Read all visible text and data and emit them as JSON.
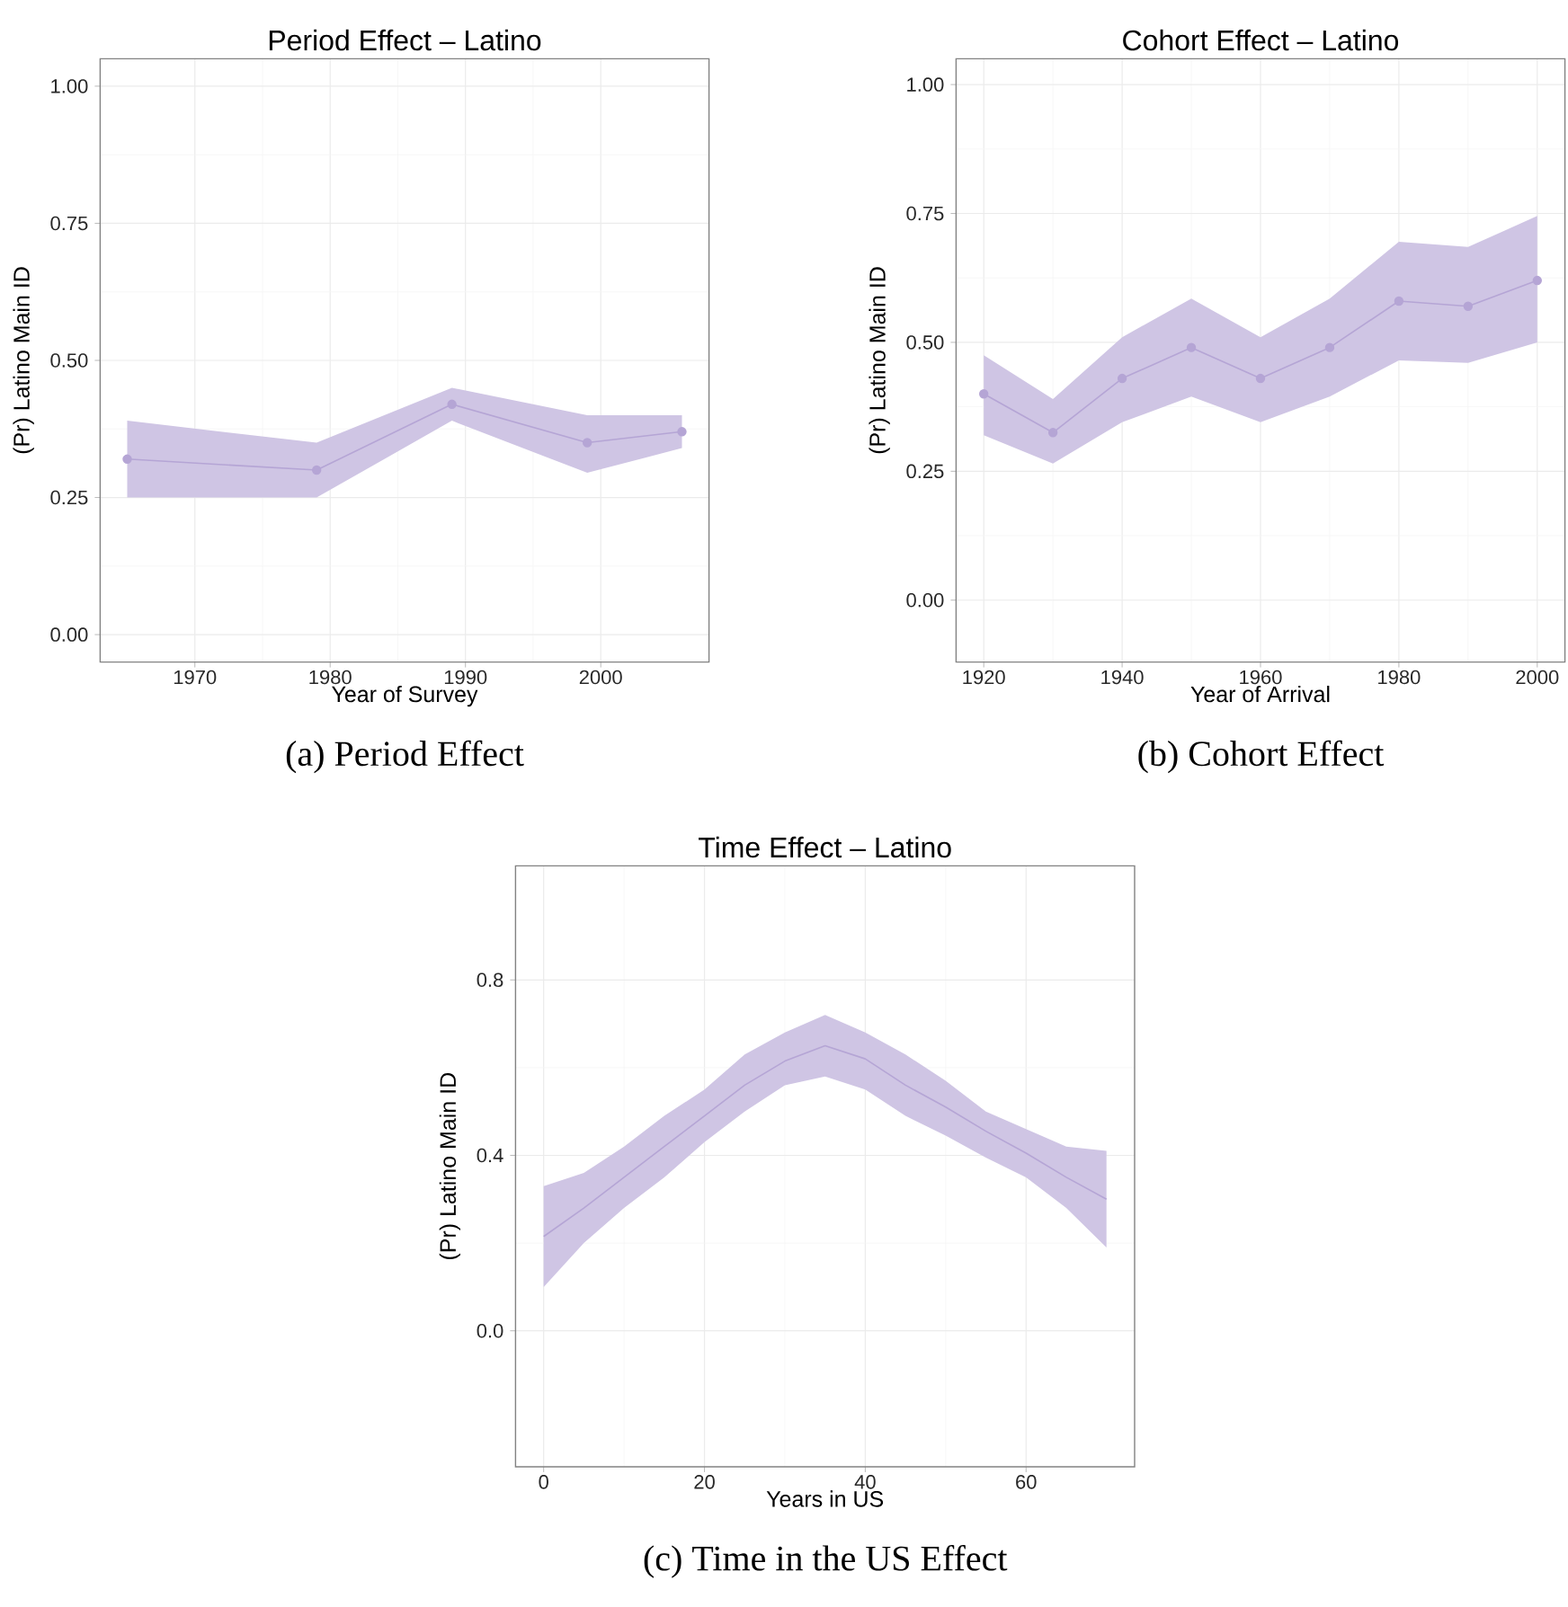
{
  "chart_data": [
    {
      "type": "line",
      "title": "Period Effect – Latino",
      "xlabel": "Year of Survey",
      "ylabel": "(Pr) Latino Main ID",
      "x": [
        1965,
        1979,
        1989,
        1999,
        2006
      ],
      "series": [
        {
          "color": "#b5a5d5",
          "values": [
            0.32,
            0.3,
            0.42,
            0.35,
            0.37
          ],
          "lower": [
            0.25,
            0.25,
            0.39,
            0.295,
            0.34
          ],
          "upper": [
            0.39,
            0.35,
            0.45,
            0.4,
            0.4
          ]
        }
      ],
      "xlim": [
        1963,
        2008
      ],
      "ylim": [
        -0.05,
        1.05
      ],
      "xticks": [
        1970,
        1980,
        1990,
        2000
      ],
      "yticks": [
        {
          "value": 0,
          "label": "0.00"
        },
        {
          "value": 0.25,
          "label": "0.25"
        },
        {
          "value": 0.5,
          "label": "0.50"
        },
        {
          "value": 0.75,
          "label": "0.75"
        },
        {
          "value": 1,
          "label": "1.00"
        }
      ],
      "grid": true,
      "marker": "circle",
      "annotations": [
        "(a) Period Effect"
      ]
    },
    {
      "type": "line",
      "title": "Cohort Effect – Latino",
      "xlabel": "Year of Arrival",
      "ylabel": "(Pr) Latino Main ID",
      "x": [
        1920,
        1930,
        1940,
        1950,
        1960,
        1970,
        1980,
        1990,
        2000
      ],
      "series": [
        {
          "color": "#b5a5d5",
          "values": [
            0.4,
            0.325,
            0.43,
            0.49,
            0.43,
            0.49,
            0.58,
            0.57,
            0.62
          ],
          "lower": [
            0.32,
            0.265,
            0.345,
            0.395,
            0.345,
            0.395,
            0.465,
            0.46,
            0.5
          ],
          "upper": [
            0.475,
            0.39,
            0.51,
            0.585,
            0.51,
            0.585,
            0.695,
            0.685,
            0.745
          ]
        }
      ],
      "xlim": [
        1916,
        2004
      ],
      "ylim": [
        -0.12,
        1.05
      ],
      "xticks": [
        1920,
        1940,
        1960,
        1980,
        2000
      ],
      "yticks": [
        {
          "value": 0,
          "label": "0.00"
        },
        {
          "value": 0.25,
          "label": "0.25"
        },
        {
          "value": 0.5,
          "label": "0.50"
        },
        {
          "value": 0.75,
          "label": "0.75"
        },
        {
          "value": 1,
          "label": "1.00"
        }
      ],
      "grid": true,
      "marker": "circle",
      "annotations": [
        "(b) Cohort Effect"
      ]
    },
    {
      "type": "line",
      "title": "Time Effect – Latino",
      "xlabel": "Years in US",
      "ylabel": "(Pr) Latino Main ID",
      "x": [
        0,
        5,
        10,
        15,
        20,
        25,
        30,
        35,
        40,
        45,
        50,
        55,
        60,
        65,
        70
      ],
      "series": [
        {
          "color": "#b5a5d5",
          "values": [
            0.215,
            0.28,
            0.35,
            0.42,
            0.49,
            0.56,
            0.615,
            0.65,
            0.62,
            0.56,
            0.51,
            0.455,
            0.405,
            0.35,
            0.3
          ],
          "lower": [
            0.1,
            0.2,
            0.28,
            0.35,
            0.43,
            0.5,
            0.56,
            0.58,
            0.55,
            0.49,
            0.445,
            0.395,
            0.35,
            0.28,
            0.19
          ],
          "upper": [
            0.33,
            0.36,
            0.42,
            0.49,
            0.55,
            0.63,
            0.68,
            0.72,
            0.68,
            0.63,
            0.57,
            0.5,
            0.46,
            0.42,
            0.41
          ]
        }
      ],
      "xlim": [
        -3.5,
        73.5
      ],
      "ylim": [
        -0.31,
        1.06
      ],
      "xticks": [
        0,
        20,
        40,
        60
      ],
      "yticks": [
        {
          "value": 0,
          "label": "0.0"
        },
        {
          "value": 0.4,
          "label": "0.4"
        },
        {
          "value": 0.8,
          "label": "0.8"
        }
      ],
      "grid": true,
      "marker": "none",
      "annotations": [
        "(c) Time in the US Effect"
      ]
    }
  ]
}
